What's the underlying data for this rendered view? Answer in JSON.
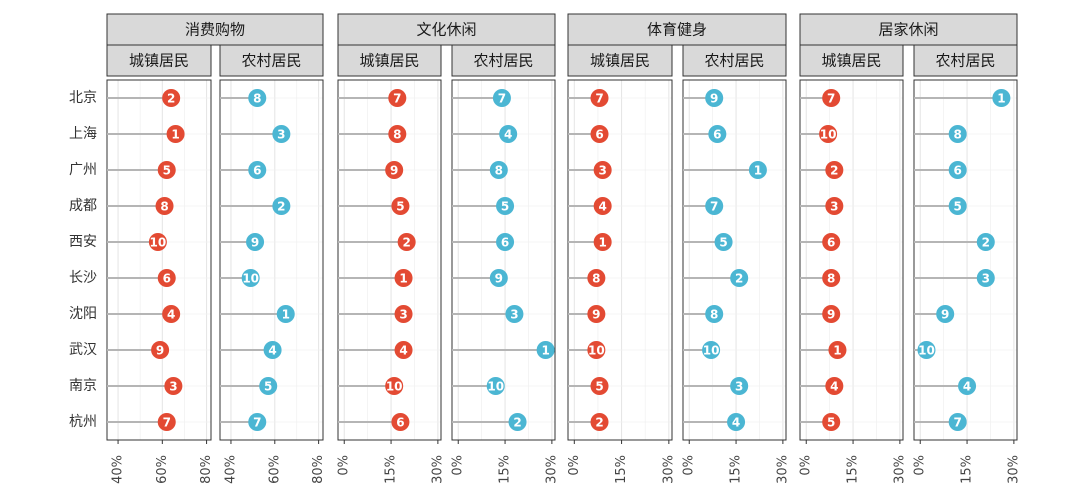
{
  "chart_data": {
    "type": "lollipop",
    "facet_rows": [
      "消费购物",
      "文化休闲",
      "体育健身",
      "居家休闲"
    ],
    "facet_cols": [
      "城镇居民",
      "农村居民"
    ],
    "categories": [
      "北京",
      "上海",
      "广州",
      "成都",
      "西安",
      "长沙",
      "沈阳",
      "武汉",
      "南京",
      "杭州"
    ],
    "colors": {
      "城镇居民": "#e34a33",
      "农村居民": "#4bb6d3"
    },
    "axes": {
      "消费购物": {
        "xlim": [
          35,
          82
        ],
        "ticks": [
          40,
          60,
          80
        ],
        "tick_labels": [
          "40%",
          "60%",
          "80%"
        ]
      },
      "other": {
        "xlim": [
          -2,
          31
        ],
        "ticks": [
          0,
          15,
          30
        ],
        "tick_labels": [
          "0%",
          "15%",
          "30%"
        ]
      }
    },
    "panels": [
      {
        "group": "消费购物",
        "resident": "城镇居民",
        "values": [
          64,
          66,
          62,
          61,
          58,
          62,
          64,
          59,
          65,
          62
        ],
        "ranks": [
          2,
          1,
          5,
          8,
          10,
          6,
          4,
          9,
          3,
          7
        ]
      },
      {
        "group": "消费购物",
        "resident": "农村居民",
        "values": [
          52,
          63,
          52,
          63,
          51,
          49,
          65,
          59,
          57,
          52
        ],
        "ranks": [
          8,
          3,
          6,
          2,
          9,
          10,
          1,
          4,
          5,
          7
        ]
      },
      {
        "group": "文化休闲",
        "resident": "城镇居民",
        "values": [
          17,
          17,
          16,
          18,
          20,
          19,
          19,
          19,
          16,
          18
        ],
        "ranks": [
          7,
          8,
          9,
          5,
          2,
          1,
          3,
          4,
          10,
          6
        ]
      },
      {
        "group": "文化休闲",
        "resident": "农村居民",
        "values": [
          14,
          16,
          13,
          15,
          15,
          13,
          18,
          28,
          12,
          19
        ],
        "ranks": [
          7,
          4,
          8,
          5,
          6,
          9,
          3,
          1,
          10,
          2
        ]
      },
      {
        "group": "体育健身",
        "resident": "城镇居民",
        "values": [
          8,
          8,
          9,
          9,
          9,
          7,
          7,
          7,
          8,
          8
        ],
        "ranks": [
          7,
          6,
          3,
          4,
          1,
          8,
          9,
          10,
          5,
          2
        ]
      },
      {
        "group": "体育健身",
        "resident": "农村居民",
        "values": [
          8,
          9,
          22,
          8,
          11,
          16,
          8,
          7,
          16,
          15
        ],
        "ranks": [
          9,
          6,
          1,
          7,
          5,
          2,
          8,
          10,
          3,
          4
        ]
      },
      {
        "group": "居家休闲",
        "resident": "城镇居民",
        "values": [
          8,
          7,
          9,
          9,
          8,
          8,
          8,
          10,
          9,
          8
        ],
        "ranks": [
          7,
          10,
          2,
          3,
          6,
          8,
          9,
          1,
          4,
          5
        ]
      },
      {
        "group": "居家休闲",
        "resident": "农村居民",
        "values": [
          26,
          12,
          12,
          12,
          21,
          21,
          8,
          2,
          15,
          12
        ],
        "ranks": [
          1,
          8,
          6,
          5,
          2,
          3,
          9,
          10,
          4,
          7
        ]
      }
    ]
  }
}
